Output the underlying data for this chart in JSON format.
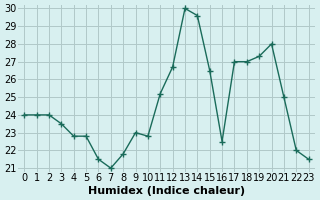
{
  "x": [
    0,
    1,
    2,
    3,
    4,
    5,
    6,
    7,
    8,
    9,
    10,
    11,
    12,
    13,
    14,
    15,
    16,
    17,
    18,
    19,
    20,
    21,
    22,
    23
  ],
  "y": [
    24,
    24,
    24,
    23.5,
    22.8,
    22.8,
    21.5,
    21,
    21.8,
    23,
    22.8,
    25.2,
    26.7,
    30,
    29.6,
    26.5,
    22.5,
    27,
    27,
    27.3,
    28,
    25,
    22,
    21.5
  ],
  "line_color": "#1a6b5a",
  "marker": "+",
  "bg_color": "#d8f0f0",
  "grid_color": "#b0c8c8",
  "xlabel": "Humidex (Indice chaleur)",
  "ylim": [
    21,
    30
  ],
  "xlim": [
    -0.5,
    23.5
  ],
  "yticks": [
    21,
    22,
    23,
    24,
    25,
    26,
    27,
    28,
    29,
    30
  ],
  "xticks": [
    0,
    1,
    2,
    3,
    4,
    5,
    6,
    7,
    8,
    9,
    10,
    11,
    12,
    13,
    14,
    15,
    16,
    17,
    18,
    19,
    20,
    21,
    22,
    23
  ],
  "xtick_labels": [
    "0",
    "1",
    "2",
    "3",
    "4",
    "5",
    "6",
    "7",
    "8",
    "9",
    "10",
    "11",
    "12",
    "13",
    "14",
    "15",
    "16",
    "17",
    "18",
    "19",
    "20",
    "21",
    "22",
    "23"
  ],
  "tick_fontsize": 7,
  "label_fontsize": 8
}
